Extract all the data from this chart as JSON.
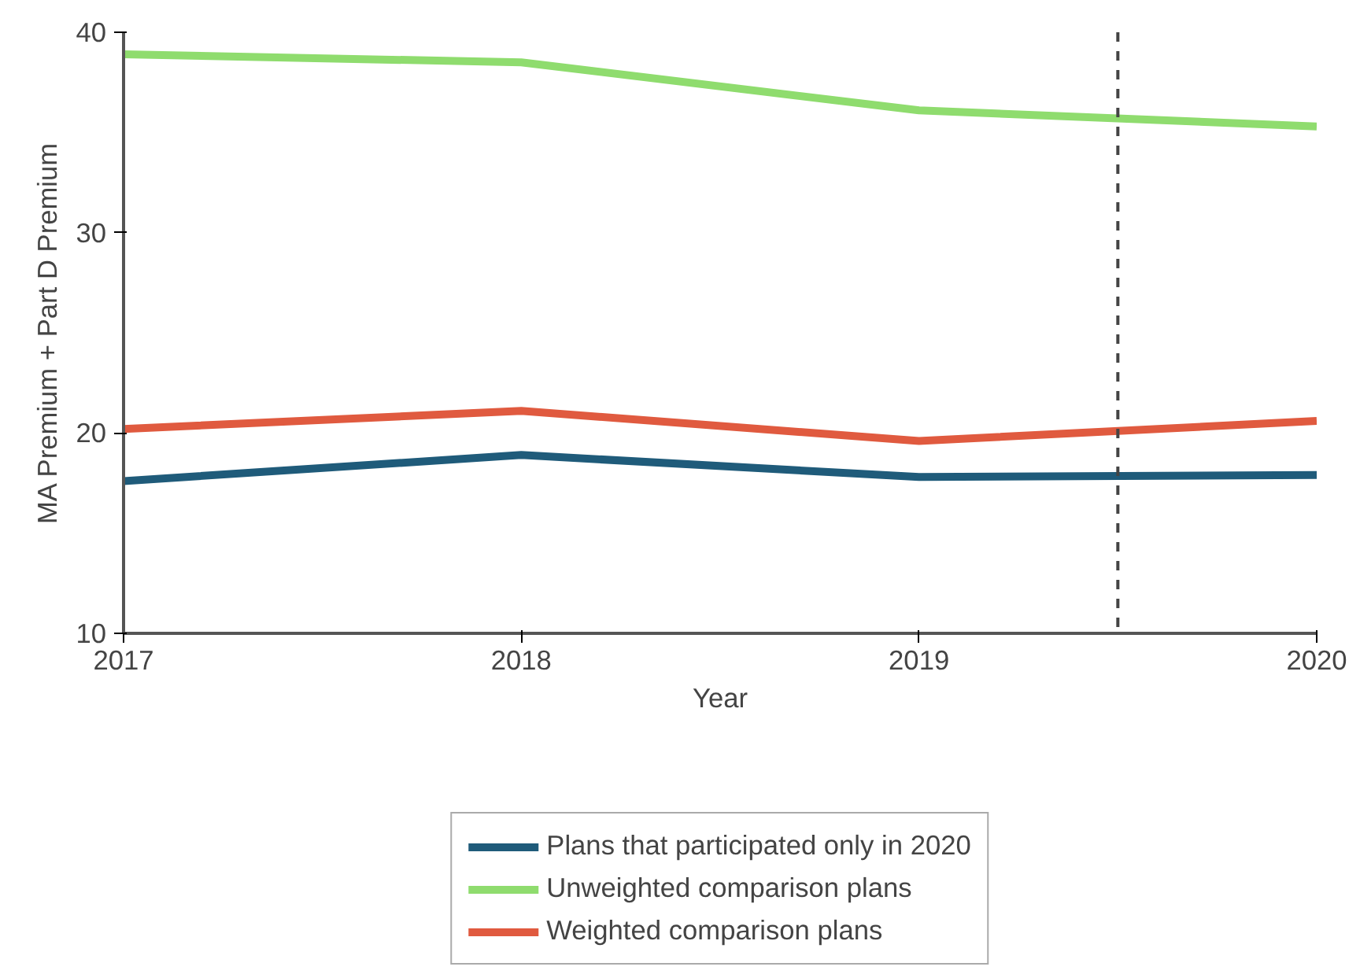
{
  "chart_data": {
    "type": "line",
    "xlabel": "Year",
    "ylabel": "MA Premium + Part D Premium",
    "x": [
      2017,
      2018,
      2019,
      2020
    ],
    "xlim": [
      2017,
      2020
    ],
    "xticks": [
      2017,
      2018,
      2019,
      2020
    ],
    "ylim": [
      10,
      40
    ],
    "yticks": [
      10,
      20,
      30,
      40
    ],
    "series": [
      {
        "name": "Plans that participated only in 2020",
        "color": "#1f5b7a",
        "values": [
          17.6,
          18.9,
          17.8,
          17.9
        ]
      },
      {
        "name": "Unweighted comparison plans",
        "color": "#8fdc6e",
        "values": [
          38.9,
          38.5,
          36.1,
          35.3
        ]
      },
      {
        "name": "Weighted comparison plans",
        "color": "#e05a3f",
        "values": [
          20.2,
          21.1,
          19.6,
          20.6
        ]
      }
    ],
    "ref_lines": [
      {
        "axis": "x",
        "value": 2019.5,
        "color": "#444444",
        "line_style": "dashed"
      }
    ],
    "grid": false,
    "legend": "bottom",
    "marker": "none",
    "line_style": "solid"
  }
}
